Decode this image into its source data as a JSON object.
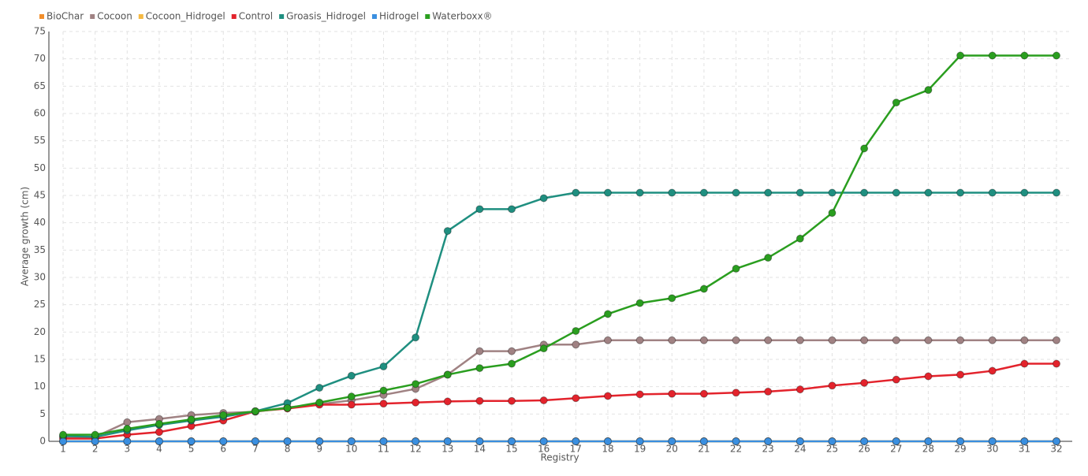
{
  "chart_data": {
    "type": "line",
    "x_label": "Registry",
    "y_label": "Average growth (cm)",
    "x": [
      1,
      2,
      3,
      4,
      5,
      6,
      7,
      8,
      9,
      10,
      11,
      12,
      13,
      14,
      15,
      16,
      17,
      18,
      19,
      20,
      21,
      22,
      23,
      24,
      25,
      26,
      27,
      28,
      29,
      30,
      31,
      32
    ],
    "xlim": [
      1,
      32
    ],
    "xticks": [
      1,
      2,
      3,
      4,
      5,
      6,
      7,
      8,
      9,
      10,
      11,
      12,
      13,
      14,
      15,
      16,
      17,
      18,
      19,
      20,
      21,
      22,
      23,
      24,
      25,
      26,
      27,
      28,
      29,
      30,
      31,
      32
    ],
    "ylim": [
      0,
      75
    ],
    "yticks": [
      0,
      5,
      10,
      15,
      20,
      25,
      30,
      35,
      40,
      45,
      50,
      55,
      60,
      65,
      70,
      75
    ],
    "grid": true,
    "legend": "top-left",
    "series": [
      {
        "name": "BioChar",
        "color": "#f28e2b",
        "values": [
          0,
          0,
          0,
          0,
          0,
          0,
          0,
          0,
          0,
          0,
          0,
          0,
          0,
          0,
          0,
          0,
          0,
          0,
          0,
          0,
          0,
          0,
          0,
          0,
          0,
          0,
          0,
          0,
          0,
          0,
          0,
          0
        ]
      },
      {
        "name": "Cocoon",
        "color": "#a08283",
        "values": [
          0.8,
          0.8,
          3.5,
          4.1,
          4.8,
          5.2,
          5.4,
          6.2,
          6.8,
          7.5,
          8.5,
          9.6,
          12.2,
          16.5,
          16.5,
          17.7,
          17.7,
          18.5,
          18.5,
          18.5,
          18.5,
          18.5,
          18.5,
          18.5,
          18.5,
          18.5,
          18.5,
          18.5,
          18.5,
          18.5,
          18.5,
          18.5
        ]
      },
      {
        "name": "Cocoon_Hidrogel",
        "color": "#f5b942",
        "values": [
          0,
          0,
          0,
          0,
          0,
          0,
          0,
          0,
          0,
          0,
          0,
          0,
          0,
          0,
          0,
          0,
          0,
          0,
          0,
          0,
          0,
          0,
          0,
          0,
          0,
          0,
          0,
          0,
          0,
          0,
          0,
          0
        ]
      },
      {
        "name": "Control",
        "color": "#e3232c",
        "values": [
          0.5,
          0.5,
          1.2,
          1.7,
          2.8,
          3.8,
          5.5,
          6.0,
          6.7,
          6.7,
          6.9,
          7.1,
          7.3,
          7.4,
          7.4,
          7.5,
          7.9,
          8.3,
          8.6,
          8.7,
          8.7,
          8.9,
          9.1,
          9.5,
          10.2,
          10.7,
          11.3,
          11.9,
          12.2,
          12.9,
          14.2,
          14.2
        ]
      },
      {
        "name": "Groasis_Hidrogel",
        "color": "#1f8f80",
        "values": [
          1.0,
          0.8,
          2.0,
          3.0,
          3.8,
          4.5,
          5.5,
          7.0,
          9.8,
          12.0,
          13.7,
          19.0,
          38.5,
          42.5,
          42.5,
          44.5,
          45.5,
          45.5,
          45.5,
          45.5,
          45.5,
          45.5,
          45.5,
          45.5,
          45.5,
          45.5,
          45.5,
          45.5,
          45.5,
          45.5,
          45.5,
          45.5
        ]
      },
      {
        "name": "Hidrogel",
        "color": "#3a8fe0",
        "values": [
          0,
          0,
          0,
          0,
          0,
          0,
          0,
          0,
          0,
          0,
          0,
          0,
          0,
          0,
          0,
          0,
          0,
          0,
          0,
          0,
          0,
          0,
          0,
          0,
          0,
          0,
          0,
          0,
          0,
          0,
          0,
          0
        ]
      },
      {
        "name": "Waterboxx®",
        "color": "#2a9e1f",
        "values": [
          1.2,
          1.2,
          2.3,
          3.2,
          4.0,
          4.8,
          5.5,
          6.1,
          7.1,
          8.2,
          9.3,
          10.5,
          12.2,
          13.4,
          14.2,
          17.0,
          20.2,
          23.3,
          25.3,
          26.2,
          27.9,
          31.6,
          33.6,
          37.1,
          41.8,
          53.6,
          62.0,
          64.3,
          70.6,
          70.6,
          70.6,
          70.6
        ]
      }
    ]
  }
}
